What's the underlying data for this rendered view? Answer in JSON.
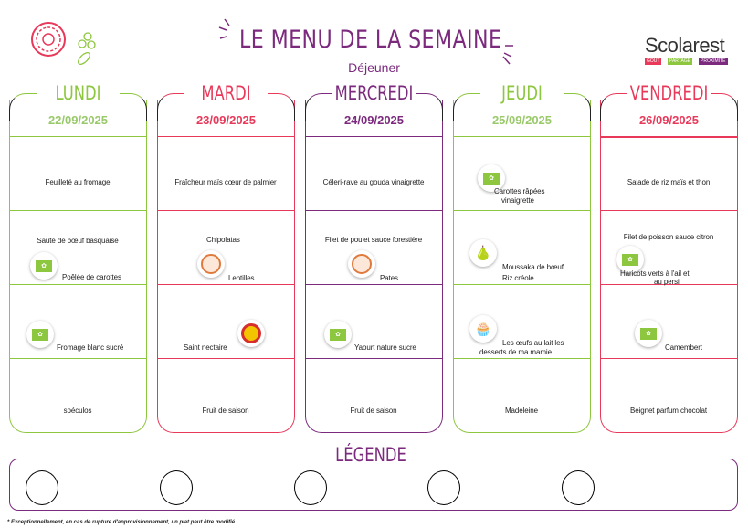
{
  "header": {
    "title": "LE MENU DE LA SEMAINE",
    "subtitle": "Déjeuner",
    "logo": "Scolarest",
    "logo_tags": [
      "GOÛT",
      "PARTAGE",
      "PROXIMITÉ"
    ]
  },
  "colors": {
    "green": "#8dc63f",
    "pink": "#e8395a",
    "purple": "#7b2a7d",
    "light_green": "#99c96a"
  },
  "days": [
    {
      "name": "LUNDI",
      "date": "22/09/2025",
      "items": [
        "Feuilleté au fromage",
        "Sauté de bœuf basquaise",
        "Poêlée de carottes",
        "Fromage blanc sucré",
        "spéculos"
      ]
    },
    {
      "name": "MARDI",
      "date": "23/09/2025",
      "items": [
        "Fraîcheur maïs cœur de palmier",
        "Chipolatas",
        "Lentilles",
        "Saint nectaire",
        "Fruit de saison"
      ]
    },
    {
      "name": "MERCREDI",
      "date": "24/09/2025",
      "items": [
        "Céleri-rave au gouda vinaigrette",
        "Filet de poulet sauce forestière",
        "Pates",
        "Yaourt nature sucre",
        "Fruit de saison"
      ]
    },
    {
      "name": "JEUDI",
      "date": "25/09/2025",
      "items": [
        "Carottes râpées",
        "vinaigrette",
        "Moussaka de bœuf",
        "Riz créole",
        "Les œufs au lait les",
        "desserts de ma mamie",
        "Madeleine"
      ]
    },
    {
      "name": "VENDREDI",
      "date": "26/09/2025",
      "items": [
        "Salade de riz maïs et thon",
        "Filet de poisson sauce citron",
        "Haricots verts à l'ail et",
        "au persil",
        "Camembert",
        "Beignet parfum chocolat"
      ]
    }
  ],
  "icons": {
    "bio": "bio-label-icon",
    "label_rouge": "label-rouge-icon",
    "aop": "aop-icon",
    "vegetables": "vegetables-icon",
    "dessert": "homemade-dessert-icon"
  },
  "legend": {
    "title": "LÉGENDE"
  },
  "footnote": "* Exceptionnellement, en cas de rupture d'approvisionnement, un plat peut être modifié."
}
